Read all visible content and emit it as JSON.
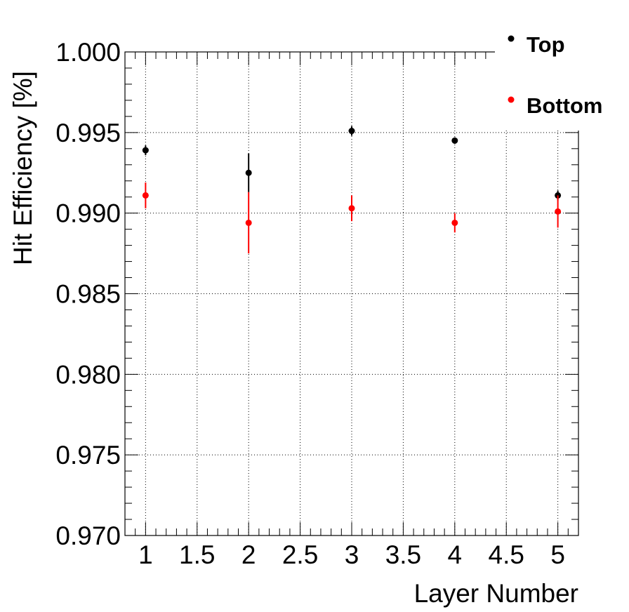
{
  "chart_data": {
    "type": "scatter",
    "xlabel": "Layer Number",
    "ylabel": "Hit Efficiency [%]",
    "xlim": [
      0.8,
      5.2
    ],
    "ylim": [
      0.97,
      1.0
    ],
    "grid": true,
    "legend_position": "top-right",
    "x_ticks": [
      "1",
      "1.5",
      "2",
      "2.5",
      "3",
      "3.5",
      "4",
      "4.5",
      "5"
    ],
    "y_ticks": [
      "0.970",
      "0.975",
      "0.980",
      "0.985",
      "0.990",
      "0.995",
      "1.000"
    ],
    "series": [
      {
        "name": "Top",
        "color": "#000000",
        "x": [
          1,
          2,
          3,
          4,
          5
        ],
        "y": [
          0.9939,
          0.9925,
          0.9951,
          0.9945,
          0.9911
        ],
        "err": [
          0.0003,
          0.0012,
          0.0003,
          0.0002,
          0.0003
        ]
      },
      {
        "name": "Bottom",
        "color": "#ff0000",
        "x": [
          1,
          2,
          3,
          4,
          5
        ],
        "y": [
          0.9911,
          0.9894,
          0.9903,
          0.9894,
          0.9901
        ],
        "err": [
          0.0008,
          0.0019,
          0.0008,
          0.0006,
          0.001
        ]
      }
    ]
  }
}
